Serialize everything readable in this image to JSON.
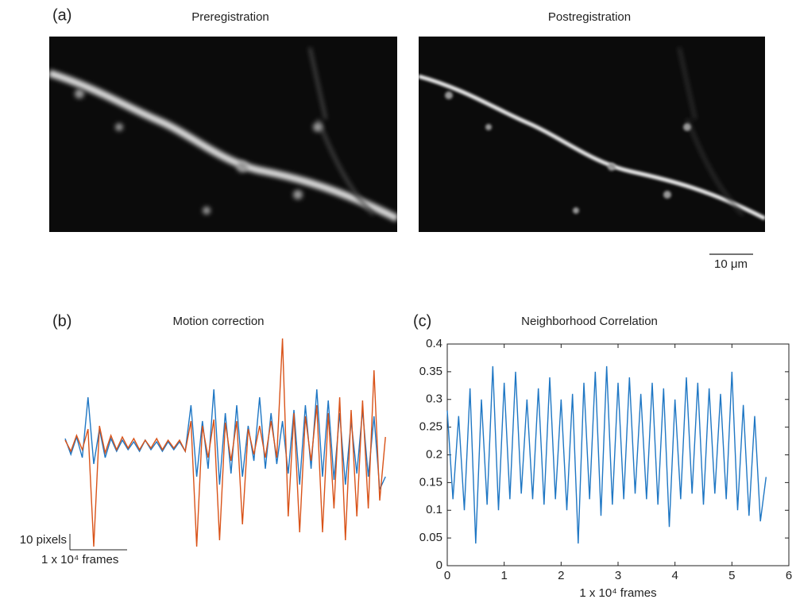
{
  "panel_a": {
    "label": "(a)",
    "left_title": "Preregistration",
    "right_title": "Postregistration",
    "scale_label": "10 μm"
  },
  "chart_data": [
    {
      "type": "line",
      "label": "(b)",
      "title": "Motion correction",
      "x": [
        0,
        0.1,
        0.2,
        0.3,
        0.4,
        0.5,
        0.6,
        0.7,
        0.8,
        0.9,
        1,
        1.1,
        1.2,
        1.3,
        1.4,
        1.5,
        1.6,
        1.7,
        1.8,
        1.9,
        2,
        2.1,
        2.2,
        2.3,
        2.4,
        2.5,
        2.6,
        2.7,
        2.8,
        2.9,
        3,
        3.1,
        3.2,
        3.3,
        3.4,
        3.5,
        3.6,
        3.7,
        3.8,
        3.9,
        4,
        4.1,
        4.2,
        4.3,
        4.4,
        4.5,
        4.6,
        4.7,
        4.8,
        4.9,
        5,
        5.1,
        5.2,
        5.3,
        5.4,
        5.5,
        5.6
      ],
      "series": [
        {
          "color": "#1f77c4",
          "values": [
            4,
            -6,
            5,
            -8,
            30,
            -12,
            10,
            -8,
            4,
            -4,
            3,
            -3,
            2,
            -4,
            3,
            -3,
            2,
            -4,
            2,
            -3,
            2,
            -4,
            25,
            -20,
            15,
            -15,
            35,
            -25,
            20,
            -18,
            25,
            -20,
            12,
            -10,
            30,
            -15,
            20,
            -12,
            15,
            -18,
            22,
            -25,
            25,
            -15,
            35,
            -20,
            28,
            -22,
            20,
            -25,
            15,
            -18,
            22,
            -20,
            18,
            -28,
            -20
          ]
        },
        {
          "color": "#d95319",
          "values": [
            3,
            -4,
            6,
            -3,
            10,
            -64,
            12,
            -5,
            6,
            -3,
            5,
            -2,
            4,
            -3,
            3,
            -2,
            4,
            -3,
            3,
            -2,
            3,
            -4,
            15,
            -64,
            12,
            -8,
            16,
            -60,
            14,
            -10,
            15,
            -50,
            10,
            -6,
            12,
            -8,
            15,
            -8,
            67,
            -45,
            20,
            -55,
            18,
            -10,
            25,
            -55,
            20,
            -40,
            30,
            -60,
            22,
            -45,
            28,
            -40,
            47,
            -35,
            5
          ]
        }
      ],
      "scalebar": {
        "x": 1,
        "y": 10,
        "x_label": "1 x 10⁴ frames",
        "y_label": "10 pixels"
      }
    },
    {
      "type": "line",
      "label": "(c)",
      "title": "Neighborhood Correlation",
      "xlabel": "1 x 10⁴ frames",
      "x": [
        0,
        0.1,
        0.2,
        0.3,
        0.4,
        0.5,
        0.6,
        0.7,
        0.8,
        0.9,
        1,
        1.1,
        1.2,
        1.3,
        1.4,
        1.5,
        1.6,
        1.7,
        1.8,
        1.9,
        2,
        2.1,
        2.2,
        2.3,
        2.4,
        2.5,
        2.6,
        2.7,
        2.8,
        2.9,
        3,
        3.1,
        3.2,
        3.3,
        3.4,
        3.5,
        3.6,
        3.7,
        3.8,
        3.9,
        4,
        4.1,
        4.2,
        4.3,
        4.4,
        4.5,
        4.6,
        4.7,
        4.8,
        4.9,
        5,
        5.1,
        5.2,
        5.3,
        5.4,
        5.5,
        5.6
      ],
      "series": [
        {
          "color": "#1f77c4",
          "values": [
            0.28,
            0.12,
            0.27,
            0.1,
            0.32,
            0.04,
            0.3,
            0.11,
            0.36,
            0.1,
            0.33,
            0.12,
            0.35,
            0.13,
            0.3,
            0.12,
            0.32,
            0.11,
            0.34,
            0.12,
            0.3,
            0.1,
            0.31,
            0.04,
            0.33,
            0.12,
            0.35,
            0.09,
            0.36,
            0.11,
            0.33,
            0.12,
            0.34,
            0.13,
            0.31,
            0.12,
            0.33,
            0.11,
            0.32,
            0.07,
            0.3,
            0.12,
            0.34,
            0.13,
            0.33,
            0.11,
            0.32,
            0.13,
            0.31,
            0.12,
            0.35,
            0.1,
            0.29,
            0.09,
            0.27,
            0.08,
            0.16
          ]
        }
      ],
      "xlim": [
        0,
        6
      ],
      "xticks": [
        0,
        1,
        2,
        3,
        4,
        5,
        6
      ],
      "ylim": [
        0,
        0.4
      ],
      "yticks": [
        0,
        0.05,
        0.1,
        0.15,
        0.2,
        0.25,
        0.3,
        0.35,
        0.4
      ]
    }
  ]
}
